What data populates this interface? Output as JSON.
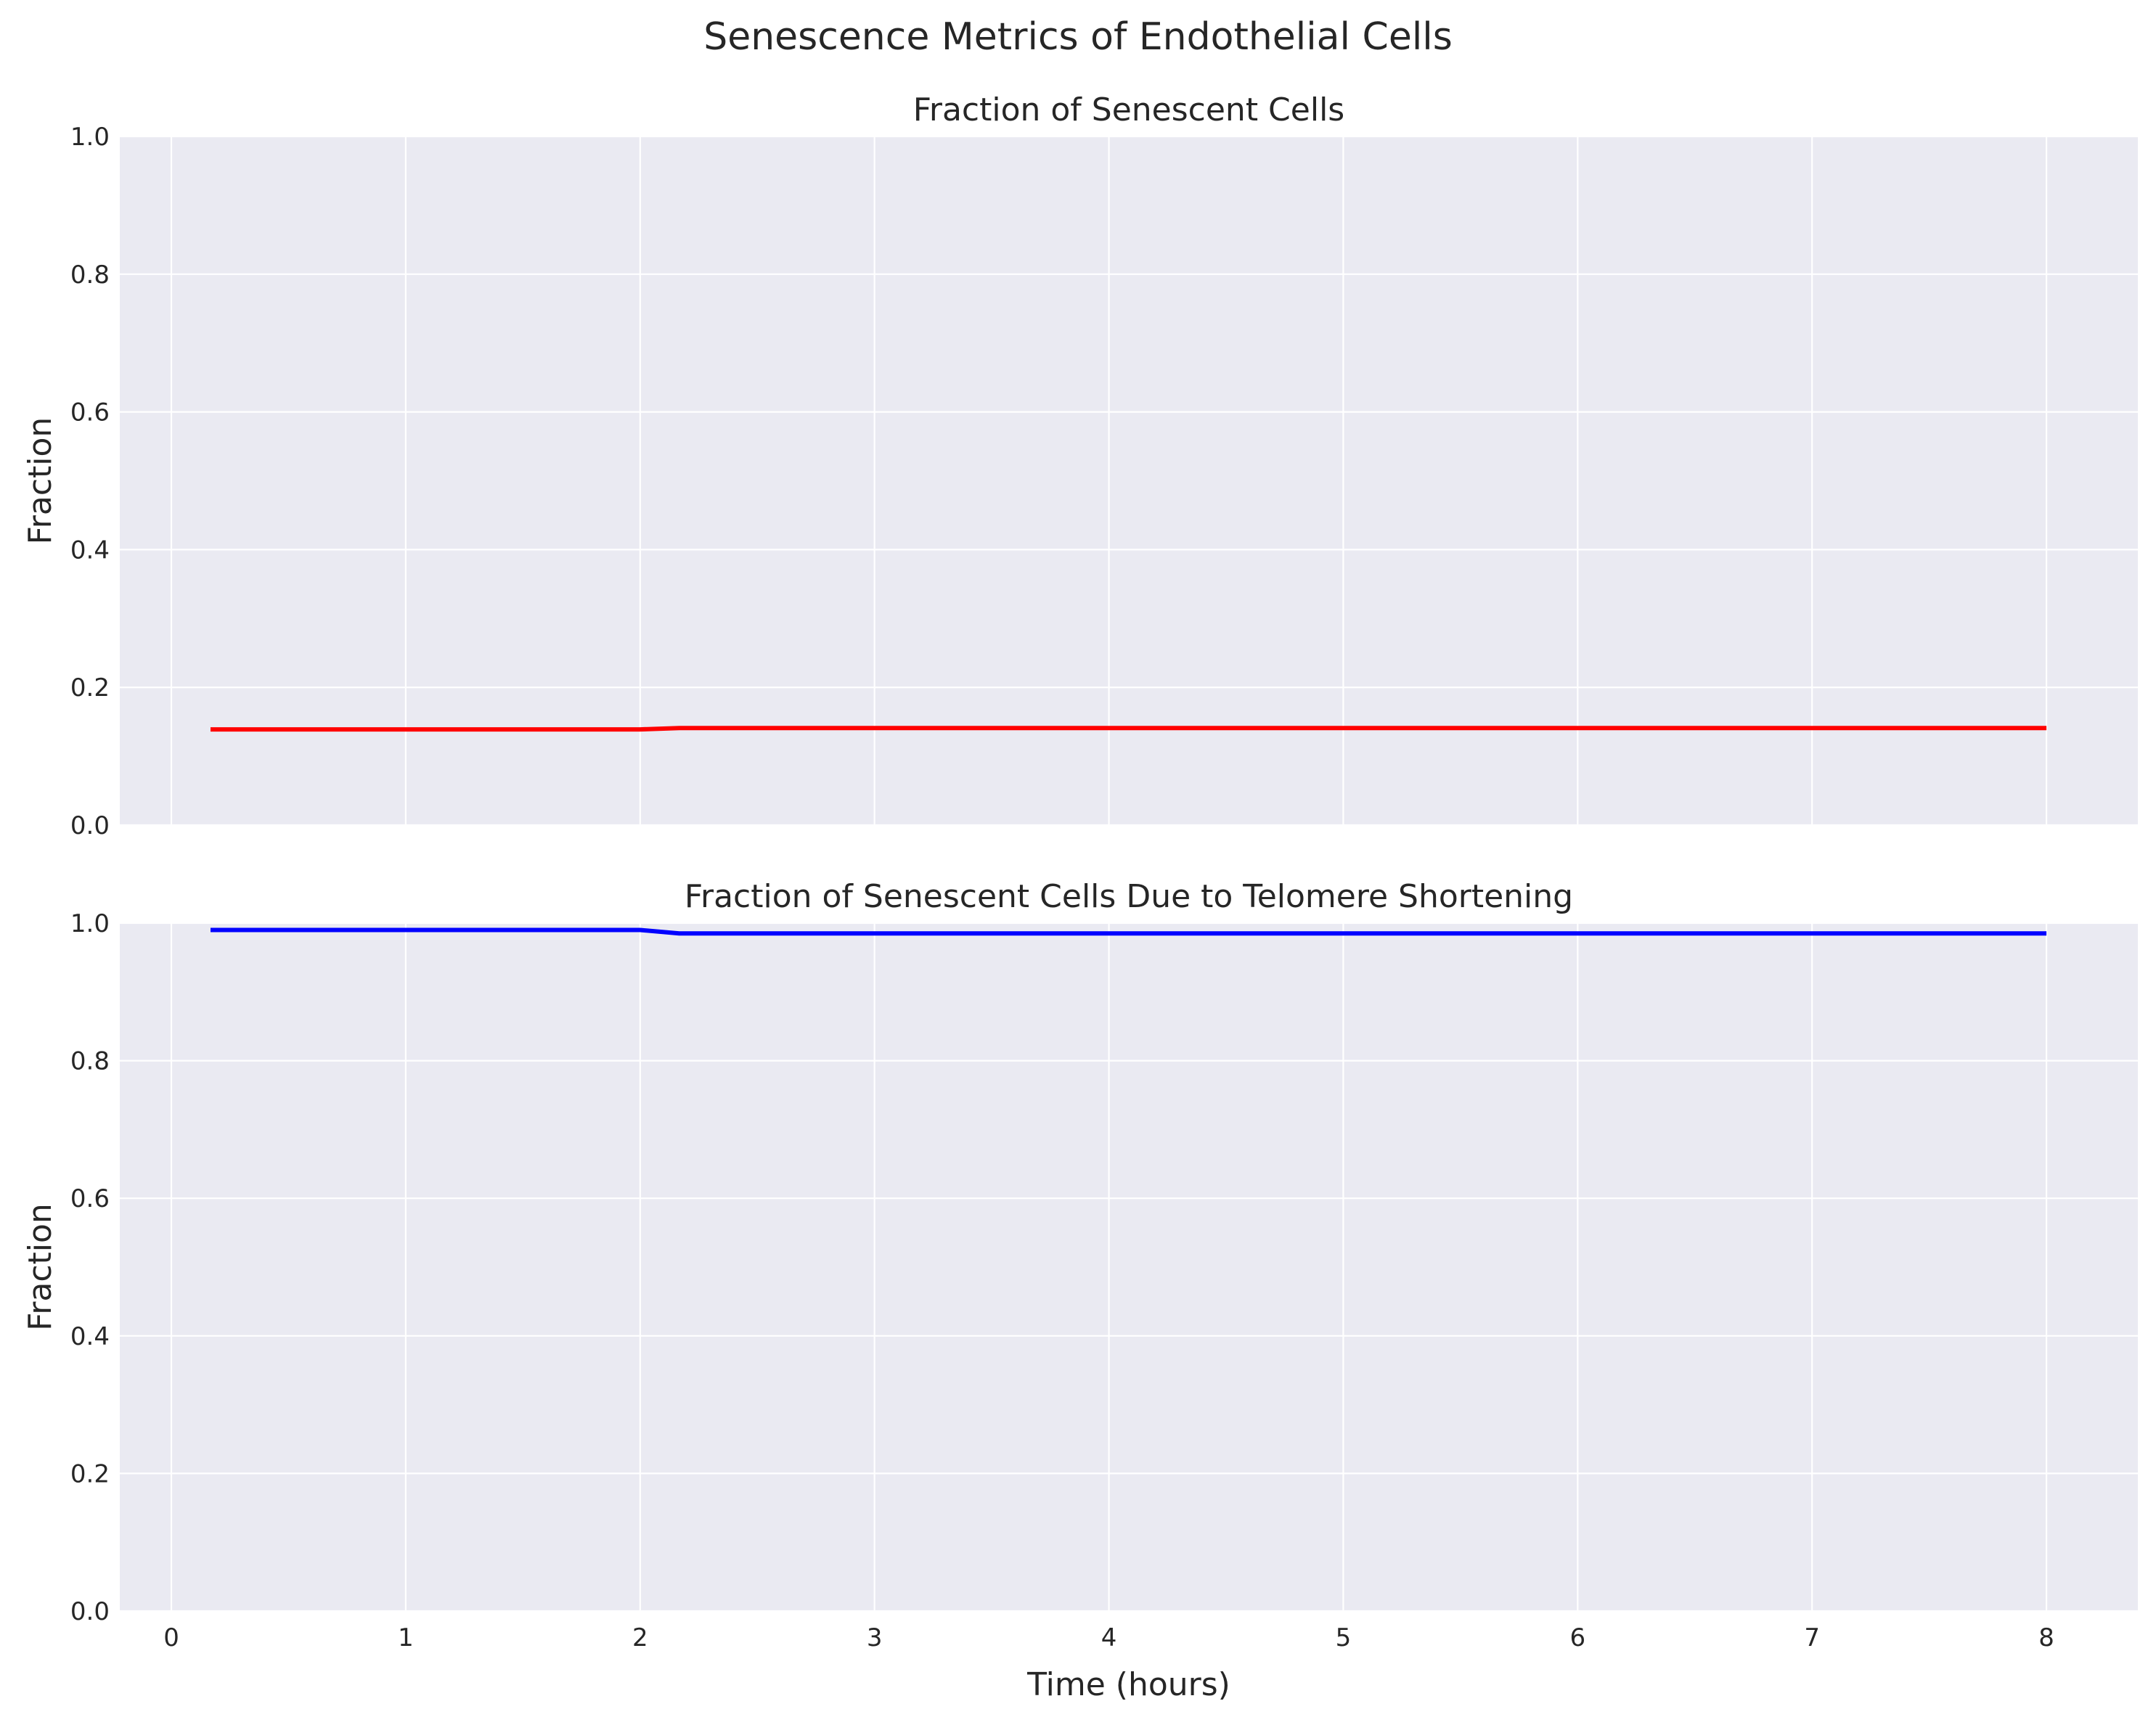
{
  "suptitle": "Senescence Metrics of Endothelial Cells",
  "colors": {
    "panel_bg": "#eaeaf2",
    "grid": "#ffffff",
    "text": "#262626"
  },
  "chart_data": [
    {
      "type": "line",
      "title": "Fraction of Senescent Cells",
      "xlabel": "",
      "ylabel": "Fraction",
      "xlim": [
        -0.22,
        8.39
      ],
      "ylim": [
        0,
        1
      ],
      "xticks": [
        0,
        1,
        2,
        3,
        4,
        5,
        6,
        7,
        8
      ],
      "yticks": [
        "0.0",
        "0.2",
        "0.4",
        "0.6",
        "0.8",
        "1.0"
      ],
      "x_ticklabels_shown": false,
      "grid": true,
      "series": [
        {
          "color": "#ff0000",
          "x": [
            0.167,
            0.5,
            1,
            1.5,
            2,
            2.167,
            3,
            4,
            5,
            6,
            7,
            8
          ],
          "y": [
            0.139,
            0.139,
            0.139,
            0.139,
            0.139,
            0.141,
            0.141,
            0.141,
            0.141,
            0.141,
            0.141,
            0.141
          ]
        }
      ]
    },
    {
      "type": "line",
      "title": "Fraction of Senescent Cells Due to Telomere Shortening",
      "xlabel": "Time (hours)",
      "ylabel": "Fraction",
      "xlim": [
        -0.22,
        8.39
      ],
      "ylim": [
        0,
        1
      ],
      "xticks": [
        0,
        1,
        2,
        3,
        4,
        5,
        6,
        7,
        8
      ],
      "yticks": [
        "0.0",
        "0.2",
        "0.4",
        "0.6",
        "0.8",
        "1.0"
      ],
      "x_ticklabels_shown": true,
      "grid": true,
      "series": [
        {
          "color": "#0000ff",
          "x": [
            0.167,
            0.5,
            1,
            1.5,
            2,
            2.167,
            3,
            4,
            5,
            6,
            7,
            8
          ],
          "y": [
            0.99,
            0.99,
            0.99,
            0.99,
            0.99,
            0.985,
            0.985,
            0.985,
            0.985,
            0.985,
            0.985,
            0.985
          ]
        }
      ]
    }
  ]
}
